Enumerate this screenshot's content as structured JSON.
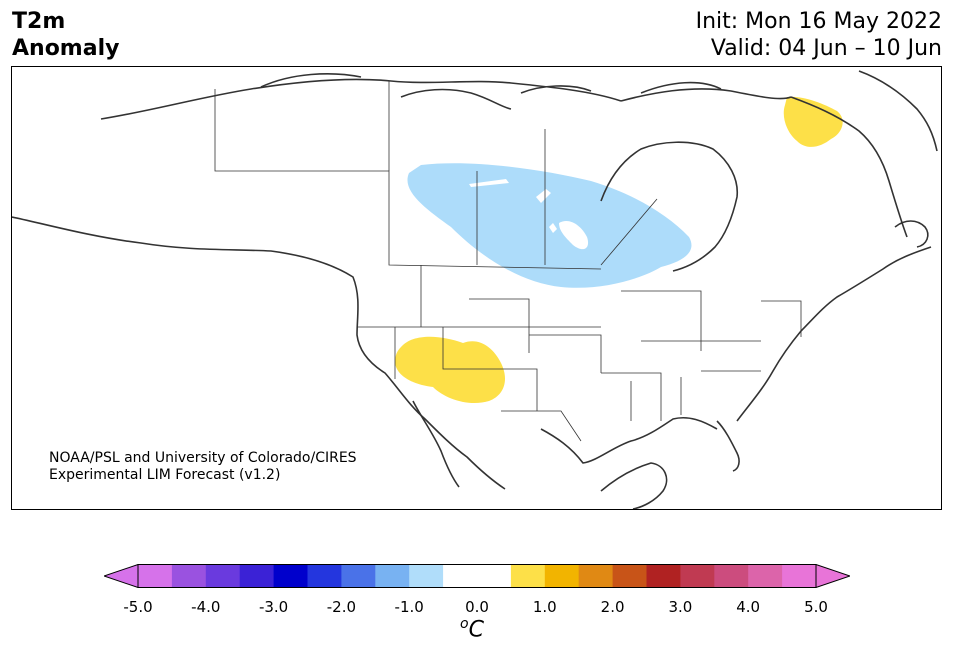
{
  "title": {
    "variable": "T2m",
    "subtitle": "Anomaly",
    "init": "Init: Mon 16 May 2022",
    "valid": "Valid: 04 Jun – 10 Jun"
  },
  "credit": {
    "line1": "NOAA/PSL and University of Colorado/CIRES",
    "line2": "Experimental LIM Forecast (v1.2)"
  },
  "colorbar": {
    "units_symbol": "o",
    "units_letter": "C",
    "ticks": [
      "-5.0",
      "-4.0",
      "-3.0",
      "-2.0",
      "-1.0",
      "0.0",
      "1.0",
      "2.0",
      "3.0",
      "4.0",
      "5.0"
    ],
    "colors": [
      "#d672ea",
      "#9a52e0",
      "#6a3ade",
      "#3b22d6",
      "#0000cc",
      "#2436de",
      "#4a72e8",
      "#78b2f2",
      "#b0ddfa",
      "#ffffff",
      "#ffffff",
      "#fde048",
      "#f2b400",
      "#e08914",
      "#c85418",
      "#b02222",
      "#c03a52",
      "#cc4c7e",
      "#dc64aa",
      "#e874d8"
    ],
    "under_color": "#d672ea",
    "over_color": "#e874d8"
  },
  "anomalies": [
    {
      "name": "cool-anomaly-central-canada",
      "color": "#addcfa",
      "value_range": "-1.0 to -0.5"
    },
    {
      "name": "warm-anomaly-southwest-us",
      "color": "#fde048",
      "value_range": "0.5 to 1.0"
    },
    {
      "name": "warm-anomaly-northern-quebec",
      "color": "#fde048",
      "value_range": "0.5 to 1.0"
    }
  ]
}
